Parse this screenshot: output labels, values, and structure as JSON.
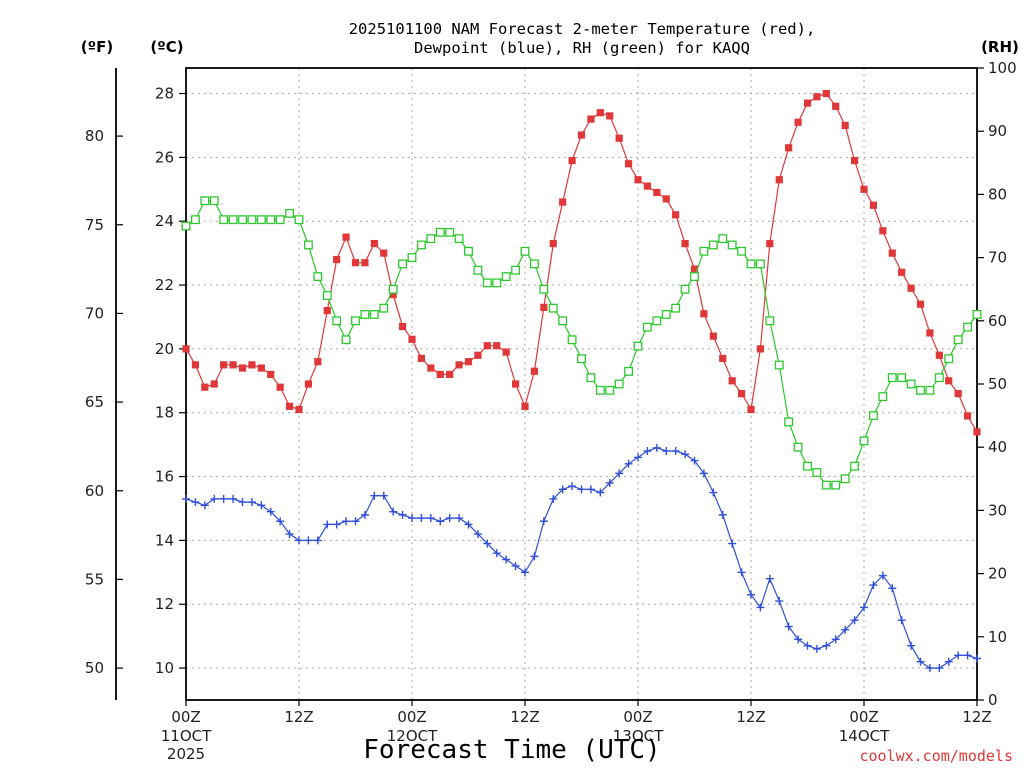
{
  "chart_data": {
    "type": "line",
    "title_line1": "2025101100 NAM Forecast 2-meter Temperature (red),",
    "title_line2": "Dewpoint (blue), RH (green) for KAQQ",
    "xlabel": "Forecast Time (UTC)",
    "credit": "coolwx.com/models",
    "unit_f": "(ºF)",
    "unit_c": "(ºC)",
    "unit_rh": "(RH)",
    "x_range_hours": [
      0,
      84
    ],
    "x_ticks": [
      {
        "hour": 0,
        "l1": "00Z",
        "l2": "11OCT",
        "l3": "2025"
      },
      {
        "hour": 12,
        "l1": "12Z",
        "l2": "",
        "l3": ""
      },
      {
        "hour": 24,
        "l1": "00Z",
        "l2": "12OCT",
        "l3": ""
      },
      {
        "hour": 36,
        "l1": "12Z",
        "l2": "",
        "l3": ""
      },
      {
        "hour": 48,
        "l1": "00Z",
        "l2": "13OCT",
        "l3": ""
      },
      {
        "hour": 60,
        "l1": "12Z",
        "l2": "",
        "l3": ""
      },
      {
        "hour": 72,
        "l1": "00Z",
        "l2": "14OCT",
        "l3": ""
      },
      {
        "hour": 84,
        "l1": "12Z",
        "l2": "",
        "l3": ""
      }
    ],
    "c_ylim": [
      9,
      28.8
    ],
    "c_ticks": [
      "10",
      "12",
      "14",
      "16",
      "18",
      "20",
      "22",
      "24",
      "26",
      "28"
    ],
    "f_ticks": [
      "50",
      "55",
      "60",
      "65",
      "70",
      "75",
      "80"
    ],
    "rh_ylim": [
      0,
      100
    ],
    "rh_ticks": [
      "0",
      "10",
      "20",
      "30",
      "40",
      "50",
      "60",
      "70",
      "80",
      "90",
      "100"
    ],
    "x_hours": [
      0,
      1,
      2,
      3,
      4,
      5,
      6,
      7,
      8,
      9,
      10,
      11,
      12,
      13,
      14,
      15,
      16,
      17,
      18,
      19,
      20,
      21,
      22,
      23,
      24,
      25,
      26,
      27,
      28,
      29,
      30,
      31,
      32,
      33,
      34,
      35,
      36,
      37,
      38,
      39,
      40,
      41,
      42,
      43,
      44,
      45,
      46,
      47,
      48,
      49,
      50,
      51,
      52,
      53,
      54,
      55,
      56,
      57,
      58,
      59,
      60,
      61,
      62,
      63,
      64,
      65,
      66,
      67,
      68,
      69,
      70,
      71,
      72,
      73,
      74,
      75,
      76,
      77,
      78,
      79,
      80,
      81,
      82,
      83,
      84
    ],
    "series": [
      {
        "name": "Temperature",
        "unit": "C",
        "color": "#e03838",
        "marker": "filled-square",
        "values": [
          20.0,
          19.5,
          18.8,
          18.9,
          19.5,
          19.5,
          19.4,
          19.5,
          19.4,
          19.2,
          18.8,
          18.2,
          18.1,
          18.9,
          19.6,
          21.2,
          22.8,
          23.5,
          22.7,
          22.7,
          23.3,
          23.0,
          21.7,
          20.7,
          20.3,
          19.7,
          19.4,
          19.2,
          19.2,
          19.5,
          19.6,
          19.8,
          20.1,
          20.1,
          19.9,
          18.9,
          18.2,
          19.3,
          21.3,
          23.3,
          24.6,
          25.9,
          26.7,
          27.2,
          27.4,
          27.3,
          26.6,
          25.8,
          25.3,
          25.1,
          24.9,
          24.7,
          24.2,
          23.3,
          22.5,
          21.1,
          20.4,
          19.7,
          19.0,
          18.6,
          18.1,
          20.0,
          23.3,
          25.3,
          26.3,
          27.1,
          27.7,
          27.9,
          28.0,
          27.6,
          27.0,
          25.9,
          25.0,
          24.5,
          23.7,
          23.0,
          22.4,
          21.9,
          21.4,
          20.5,
          19.8,
          19.0,
          18.6,
          17.9,
          17.4
        ]
      },
      {
        "name": "Dewpoint",
        "unit": "C",
        "color": "#3050d8",
        "marker": "plus",
        "values": [
          15.3,
          15.2,
          15.1,
          15.3,
          15.3,
          15.3,
          15.2,
          15.2,
          15.1,
          14.9,
          14.6,
          14.2,
          14.0,
          14.0,
          14.0,
          14.5,
          14.5,
          14.6,
          14.6,
          14.8,
          15.4,
          15.4,
          14.9,
          14.8,
          14.7,
          14.7,
          14.7,
          14.6,
          14.7,
          14.7,
          14.5,
          14.2,
          13.9,
          13.6,
          13.4,
          13.2,
          13.0,
          13.5,
          14.6,
          15.3,
          15.6,
          15.7,
          15.6,
          15.6,
          15.5,
          15.8,
          16.1,
          16.4,
          16.6,
          16.8,
          16.9,
          16.8,
          16.8,
          16.7,
          16.5,
          16.1,
          15.5,
          14.8,
          13.9,
          13.0,
          12.3,
          11.9,
          12.8,
          12.1,
          11.3,
          10.9,
          10.7,
          10.6,
          10.7,
          10.9,
          11.2,
          11.5,
          11.9,
          12.6,
          12.9,
          12.5,
          11.5,
          10.7,
          10.2,
          10.0,
          10.0,
          10.2,
          10.4,
          10.4,
          10.3
        ]
      },
      {
        "name": "RH",
        "unit": "%",
        "color": "#2ec82e",
        "marker": "open-square",
        "values": [
          75,
          76,
          79,
          79,
          76,
          76,
          76,
          76,
          76,
          76,
          76,
          77,
          76,
          72,
          67,
          64,
          60,
          57,
          60,
          61,
          61,
          62,
          65,
          69,
          70,
          72,
          73,
          74,
          74,
          73,
          71,
          68,
          66,
          66,
          67,
          68,
          71,
          69,
          65,
          62,
          60,
          57,
          54,
          51,
          49,
          49,
          50,
          52,
          56,
          59,
          60,
          61,
          62,
          65,
          67,
          71,
          72,
          73,
          72,
          71,
          69,
          69,
          60,
          53,
          44,
          40,
          37,
          36,
          34,
          34,
          35,
          37,
          41,
          45,
          48,
          51,
          51,
          50,
          49,
          49,
          51,
          54,
          57,
          59,
          61
        ]
      }
    ]
  }
}
